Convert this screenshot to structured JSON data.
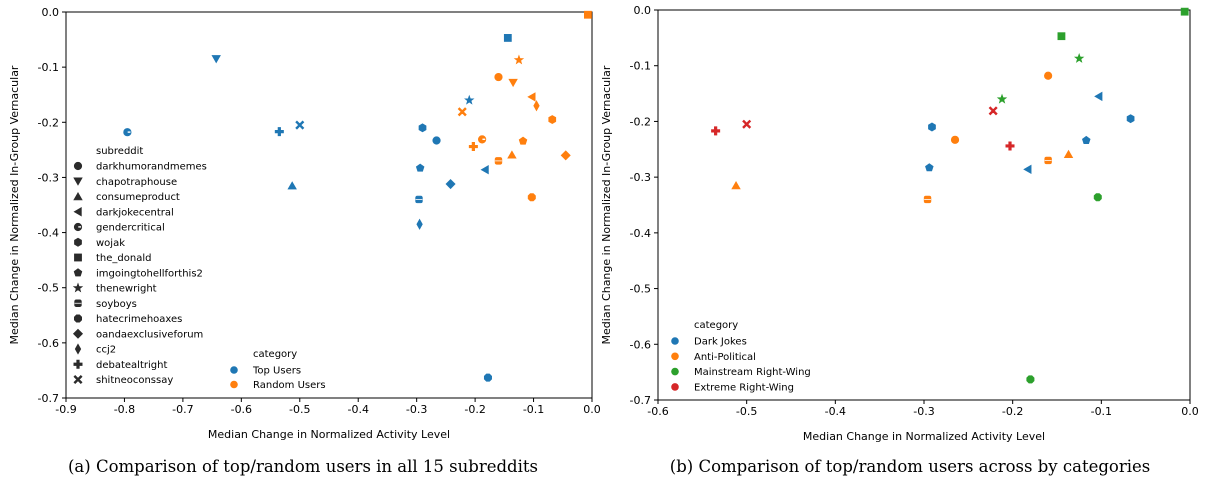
{
  "colors": {
    "Top Users": "#1f77b4",
    "Random Users": "#ff7f0e",
    "Dark Jokes": "#1f77b4",
    "Anti-Political": "#ff7f0e",
    "Mainstream Right-Wing": "#2ca02c",
    "Extreme Right-Wing": "#d62728"
  },
  "captions": {
    "a": "(a) Comparison of top/random users in all 15 subreddits",
    "b": "(b) Comparison of top/random users across by categories"
  },
  "chart_data": [
    {
      "type": "scatter",
      "xlabel": "Median Change in Normalized Activity Level",
      "ylabel": "Median Change in Normalized In-Group Vernacular",
      "xlim": [
        -0.9,
        0.0
      ],
      "ylim": [
        -0.7,
        0.0
      ],
      "xticks": [
        "-0.9",
        "-0.8",
        "-0.7",
        "-0.6",
        "-0.5",
        "-0.4",
        "-0.3",
        "-0.2",
        "-0.1",
        "0.0"
      ],
      "yticks": [
        "0.0",
        "-0.1",
        "-0.2",
        "-0.3",
        "-0.4",
        "-0.5",
        "-0.6",
        "-0.7"
      ],
      "legend_subreddit_title": "subreddit",
      "legend_subreddit": [
        {
          "name": "darkhumorandmemes",
          "marker": "circle"
        },
        {
          "name": "chapotraphouse",
          "marker": "triangle-down"
        },
        {
          "name": "consumeproduct",
          "marker": "triangle-up"
        },
        {
          "name": "darkjokecentral",
          "marker": "triangle-left"
        },
        {
          "name": "gendercritical",
          "marker": "circle-g"
        },
        {
          "name": "wojak",
          "marker": "hexagon"
        },
        {
          "name": "the_donald",
          "marker": "square"
        },
        {
          "name": "imgoingtohellforthis2",
          "marker": "pentagon"
        },
        {
          "name": "thenewright",
          "marker": "star"
        },
        {
          "name": "soyboys",
          "marker": "square-rounded"
        },
        {
          "name": "hatecrimehoaxes",
          "marker": "octagon"
        },
        {
          "name": "oandaexclusiveforum",
          "marker": "diamond"
        },
        {
          "name": "ccj2",
          "marker": "thin-diamond"
        },
        {
          "name": "debatealtright",
          "marker": "plus"
        },
        {
          "name": "shitneoconssay",
          "marker": "x"
        }
      ],
      "legend_category_title": "category",
      "legend_category": [
        "Top Users",
        "Random Users"
      ],
      "points": [
        {
          "x": -0.643,
          "y": -0.085,
          "marker": "triangle-down",
          "series": "Top Users"
        },
        {
          "x": -0.795,
          "y": -0.218,
          "marker": "circle-g",
          "series": "Top Users"
        },
        {
          "x": -0.535,
          "y": -0.217,
          "marker": "plus",
          "series": "Top Users"
        },
        {
          "x": -0.5,
          "y": -0.205,
          "marker": "x",
          "series": "Top Users"
        },
        {
          "x": -0.513,
          "y": -0.315,
          "marker": "triangle-up",
          "series": "Top Users"
        },
        {
          "x": -0.144,
          "y": -0.047,
          "marker": "square",
          "series": "Top Users"
        },
        {
          "x": -0.21,
          "y": -0.16,
          "marker": "star",
          "series": "Top Users"
        },
        {
          "x": -0.29,
          "y": -0.21,
          "marker": "hexagon",
          "series": "Top Users"
        },
        {
          "x": -0.266,
          "y": -0.233,
          "marker": "circle",
          "series": "Top Users"
        },
        {
          "x": -0.294,
          "y": -0.283,
          "marker": "pentagon",
          "series": "Top Users"
        },
        {
          "x": -0.296,
          "y": -0.34,
          "marker": "square-rounded",
          "series": "Top Users"
        },
        {
          "x": -0.295,
          "y": -0.385,
          "marker": "thin-diamond",
          "series": "Top Users"
        },
        {
          "x": -0.242,
          "y": -0.312,
          "marker": "diamond",
          "series": "Top Users"
        },
        {
          "x": -0.183,
          "y": -0.286,
          "marker": "triangle-left",
          "series": "Top Users"
        },
        {
          "x": -0.178,
          "y": -0.663,
          "marker": "octagon",
          "series": "Top Users"
        },
        {
          "x": -0.007,
          "y": -0.005,
          "marker": "square",
          "series": "Random Users"
        },
        {
          "x": -0.125,
          "y": -0.087,
          "marker": "star",
          "series": "Random Users"
        },
        {
          "x": -0.16,
          "y": -0.118,
          "marker": "circle",
          "series": "Random Users"
        },
        {
          "x": -0.135,
          "y": -0.128,
          "marker": "triangle-down",
          "series": "Random Users"
        },
        {
          "x": -0.103,
          "y": -0.154,
          "marker": "triangle-left",
          "series": "Random Users"
        },
        {
          "x": -0.095,
          "y": -0.17,
          "marker": "thin-diamond",
          "series": "Random Users"
        },
        {
          "x": -0.222,
          "y": -0.181,
          "marker": "x",
          "series": "Random Users"
        },
        {
          "x": -0.068,
          "y": -0.195,
          "marker": "hexagon",
          "series": "Random Users"
        },
        {
          "x": -0.188,
          "y": -0.231,
          "marker": "circle-g",
          "series": "Random Users"
        },
        {
          "x": -0.118,
          "y": -0.234,
          "marker": "pentagon",
          "series": "Random Users"
        },
        {
          "x": -0.203,
          "y": -0.244,
          "marker": "plus",
          "series": "Random Users"
        },
        {
          "x": -0.137,
          "y": -0.259,
          "marker": "triangle-up",
          "series": "Random Users"
        },
        {
          "x": -0.045,
          "y": -0.26,
          "marker": "diamond",
          "series": "Random Users"
        },
        {
          "x": -0.16,
          "y": -0.27,
          "marker": "square-rounded",
          "series": "Random Users"
        },
        {
          "x": -0.103,
          "y": -0.336,
          "marker": "octagon",
          "series": "Random Users"
        }
      ]
    },
    {
      "type": "scatter",
      "xlabel": "Median Change in Normalized Activity Level",
      "ylabel": "Median Change in Normalized In-Group Vernacular",
      "xlim": [
        -0.6,
        0.0
      ],
      "ylim": [
        -0.7,
        0.0
      ],
      "xticks": [
        "-0.6",
        "-0.5",
        "-0.4",
        "-0.3",
        "-0.2",
        "-0.1",
        "0.0"
      ],
      "yticks": [
        "0.0",
        "-0.1",
        "-0.2",
        "-0.3",
        "-0.4",
        "-0.5",
        "-0.6",
        "-0.7"
      ],
      "legend_category_title": "category",
      "legend_category": [
        "Dark Jokes",
        "Anti-Political",
        "Mainstream Right-Wing",
        "Extreme Right-Wing"
      ],
      "points": [
        {
          "x": -0.006,
          "y": -0.003,
          "marker": "square",
          "series": "Mainstream Right-Wing"
        },
        {
          "x": -0.145,
          "y": -0.047,
          "marker": "square",
          "series": "Mainstream Right-Wing"
        },
        {
          "x": -0.125,
          "y": -0.087,
          "marker": "star",
          "series": "Mainstream Right-Wing"
        },
        {
          "x": -0.212,
          "y": -0.16,
          "marker": "star",
          "series": "Mainstream Right-Wing"
        },
        {
          "x": -0.104,
          "y": -0.336,
          "marker": "octagon",
          "series": "Mainstream Right-Wing"
        },
        {
          "x": -0.18,
          "y": -0.663,
          "marker": "octagon",
          "series": "Mainstream Right-Wing"
        },
        {
          "x": -0.16,
          "y": -0.118,
          "marker": "circle",
          "series": "Anti-Political"
        },
        {
          "x": -0.265,
          "y": -0.233,
          "marker": "circle",
          "series": "Anti-Political"
        },
        {
          "x": -0.16,
          "y": -0.27,
          "marker": "square-rounded",
          "series": "Anti-Political"
        },
        {
          "x": -0.137,
          "y": -0.259,
          "marker": "triangle-up",
          "series": "Anti-Political"
        },
        {
          "x": -0.512,
          "y": -0.315,
          "marker": "triangle-up",
          "series": "Anti-Political"
        },
        {
          "x": -0.296,
          "y": -0.34,
          "marker": "square-rounded",
          "series": "Anti-Political"
        },
        {
          "x": -0.103,
          "y": -0.155,
          "marker": "triangle-left",
          "series": "Dark Jokes"
        },
        {
          "x": -0.067,
          "y": -0.195,
          "marker": "hexagon",
          "series": "Dark Jokes"
        },
        {
          "x": -0.291,
          "y": -0.21,
          "marker": "hexagon",
          "series": "Dark Jokes"
        },
        {
          "x": -0.117,
          "y": -0.234,
          "marker": "pentagon",
          "series": "Dark Jokes"
        },
        {
          "x": -0.294,
          "y": -0.283,
          "marker": "pentagon",
          "series": "Dark Jokes"
        },
        {
          "x": -0.183,
          "y": -0.286,
          "marker": "triangle-left",
          "series": "Dark Jokes"
        },
        {
          "x": -0.222,
          "y": -0.181,
          "marker": "x",
          "series": "Extreme Right-Wing"
        },
        {
          "x": -0.5,
          "y": -0.205,
          "marker": "x",
          "series": "Extreme Right-Wing"
        },
        {
          "x": -0.535,
          "y": -0.217,
          "marker": "plus",
          "series": "Extreme Right-Wing"
        },
        {
          "x": -0.203,
          "y": -0.244,
          "marker": "plus",
          "series": "Extreme Right-Wing"
        }
      ]
    }
  ]
}
